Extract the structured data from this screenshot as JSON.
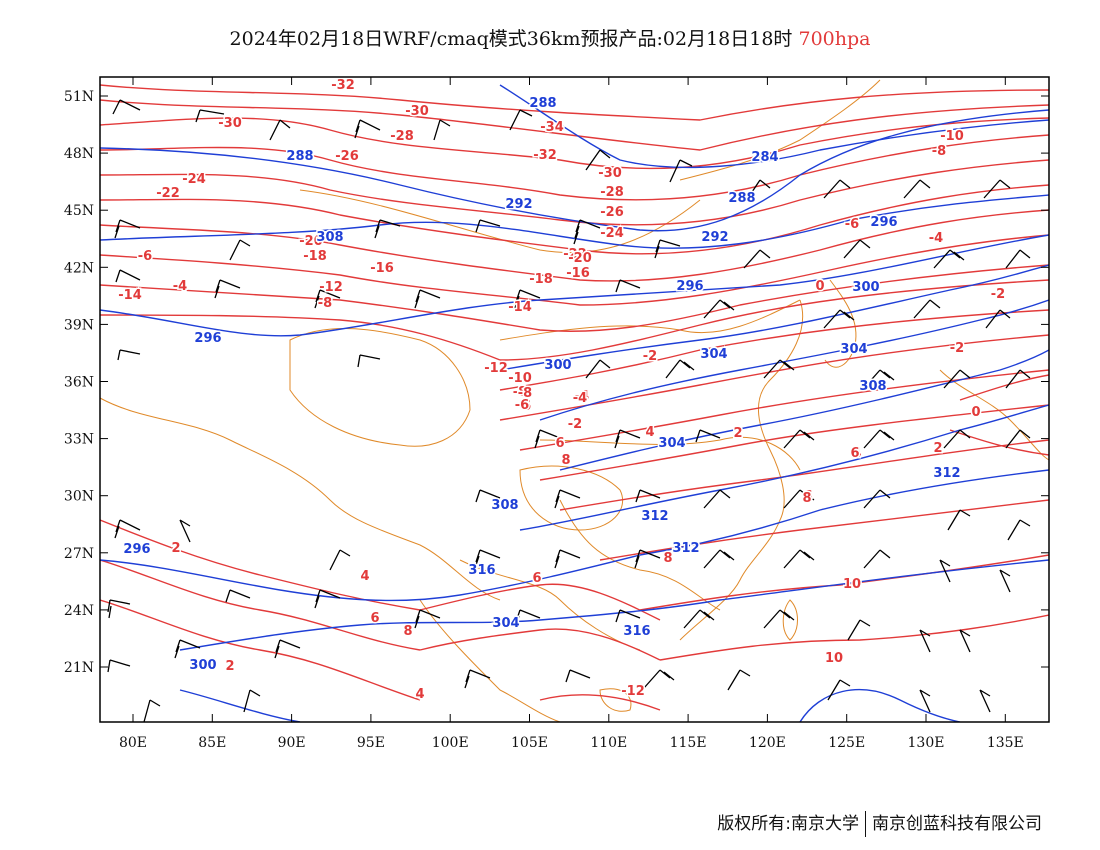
{
  "title": {
    "main": "2024年02月18日WRF/cmaq模式36km预报产品:02月18日18时",
    "level": "700hpa"
  },
  "colors": {
    "temperature": "#e23a3a",
    "height": "#1f3fd6",
    "coast": "#e08a2a",
    "wind": "#000000"
  },
  "axes": {
    "lon": [
      "80E",
      "85E",
      "90E",
      "95E",
      "100E",
      "105E",
      "110E",
      "115E",
      "120E",
      "125E",
      "130E",
      "135E"
    ],
    "lat": [
      "51N",
      "48N",
      "45N",
      "42N",
      "39N",
      "36N",
      "33N",
      "30N",
      "27N",
      "24N",
      "21N"
    ]
  },
  "temperature_labels": [
    "-32",
    "-30",
    "-30",
    "-28",
    "-26",
    "-24",
    "-22",
    "-20",
    "-18",
    "-16",
    "-14",
    "-12",
    "-8",
    "-34",
    "-32",
    "-30",
    "-28",
    "-26",
    "-24",
    "-22",
    "-20",
    "-18",
    "-16",
    "-14",
    "-12",
    "-10",
    "-8",
    "-6",
    "-4",
    "-2",
    "0",
    "-6",
    "-4",
    "-2",
    "-2",
    "-10",
    "-8",
    "-6",
    "-4",
    "-2",
    "0",
    "2",
    "4",
    "6",
    "8",
    "2",
    "4",
    "6",
    "8",
    "2",
    "4",
    "6",
    "8",
    "10",
    "10",
    "-12",
    "-10",
    "-8",
    "-6",
    "-4",
    "2",
    "4",
    "6",
    "8",
    "6"
  ],
  "height_labels": [
    "288",
    "288",
    "292",
    "296",
    "284",
    "288",
    "292",
    "296",
    "300",
    "304",
    "304",
    "308",
    "312",
    "296",
    "300",
    "304",
    "308",
    "312",
    "316",
    "316",
    "312",
    "296",
    "300",
    "304",
    "308"
  ],
  "footer": {
    "left": "版权所有:南京大学",
    "right": "南京创蓝科技有限公司"
  }
}
